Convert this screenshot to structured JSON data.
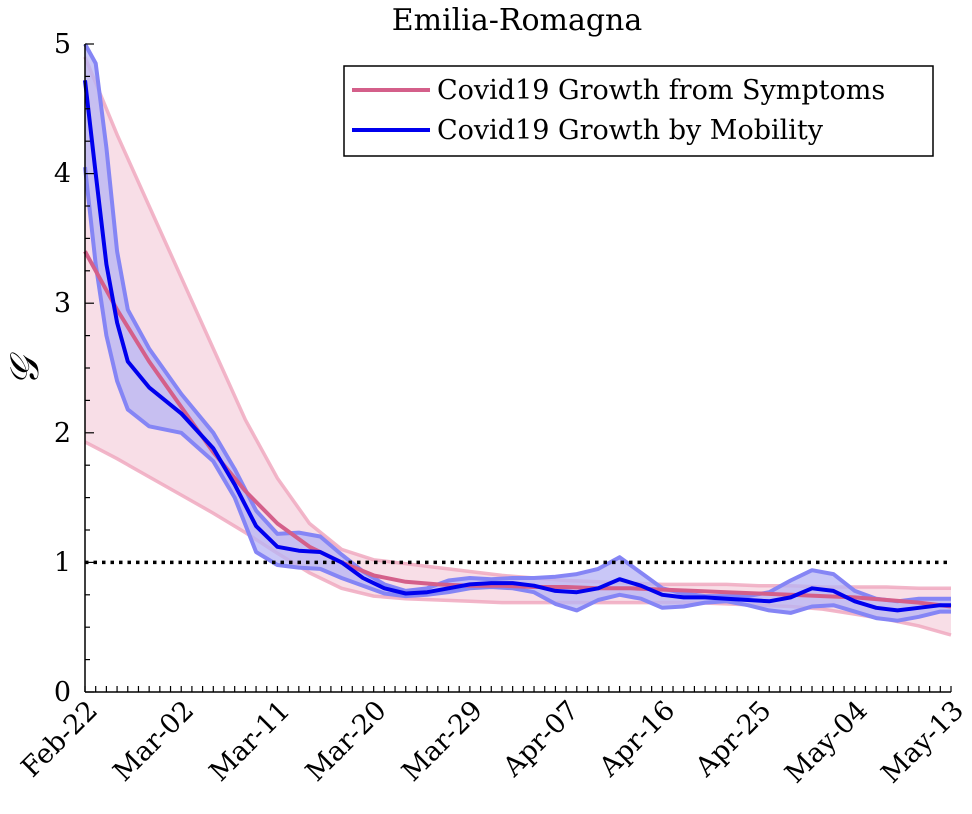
{
  "chart_data": {
    "type": "line",
    "title": "Emilia-Romagna",
    "xlabel": "",
    "ylabel": "𝒢",
    "xlim": [
      0,
      81
    ],
    "ylim": [
      0,
      5
    ],
    "grid": false,
    "legend_position": "top-right",
    "x_tick_labels": [
      "Feb-22",
      "Mar-02",
      "Mar-11",
      "Mar-20",
      "Mar-29",
      "Apr-07",
      "Apr-16",
      "Apr-25",
      "May-04",
      "May-13"
    ],
    "x_tick_positions": [
      0,
      9,
      18,
      27,
      36,
      45,
      54,
      63,
      72,
      81
    ],
    "y_tick_labels": [
      "0",
      "1",
      "2",
      "3",
      "4",
      "5"
    ],
    "y_tick_values": [
      0,
      1,
      2,
      3,
      4,
      5
    ],
    "reference_line": {
      "y": 1,
      "style": "dotted",
      "color": "#000000"
    },
    "colors": {
      "symptoms_line": "#d45f8a",
      "symptoms_band": "#f2c3d3",
      "symptoms_band_edge": "#f0a9c0",
      "mobility_line": "#0000ee",
      "mobility_band": "#b7b4f4",
      "mobility_band_edge": "#8585f5"
    },
    "series": [
      {
        "name": "Covid19 Growth from Symptoms",
        "x": [
          0,
          3,
          6,
          9,
          12,
          15,
          18,
          21,
          24,
          27,
          30,
          33,
          36,
          39,
          42,
          45,
          48,
          51,
          54,
          57,
          60,
          63,
          66,
          69,
          72,
          75,
          78,
          81
        ],
        "values": [
          3.4,
          2.95,
          2.55,
          2.2,
          1.85,
          1.55,
          1.3,
          1.12,
          1.0,
          0.9,
          0.85,
          0.83,
          0.82,
          0.82,
          0.81,
          0.81,
          0.8,
          0.8,
          0.79,
          0.78,
          0.77,
          0.76,
          0.75,
          0.74,
          0.73,
          0.71,
          0.69,
          0.66
        ],
        "lower": [
          1.93,
          1.8,
          1.66,
          1.52,
          1.38,
          1.23,
          1.07,
          0.92,
          0.8,
          0.74,
          0.72,
          0.71,
          0.7,
          0.69,
          0.69,
          0.69,
          0.69,
          0.69,
          0.69,
          0.69,
          0.68,
          0.67,
          0.66,
          0.64,
          0.6,
          0.56,
          0.51,
          0.44
        ],
        "upper": [
          4.9,
          4.3,
          3.75,
          3.2,
          2.65,
          2.1,
          1.65,
          1.3,
          1.1,
          1.02,
          0.99,
          0.96,
          0.93,
          0.9,
          0.88,
          0.86,
          0.85,
          0.84,
          0.83,
          0.83,
          0.83,
          0.82,
          0.82,
          0.81,
          0.81,
          0.81,
          0.8,
          0.8
        ]
      },
      {
        "name": "Covid19 Growth by Mobility",
        "x": [
          0,
          1,
          2,
          3,
          4,
          6,
          9,
          12,
          14,
          16,
          18,
          20,
          22,
          24,
          26,
          28,
          30,
          32,
          34,
          36,
          38,
          40,
          42,
          44,
          46,
          48,
          50,
          52,
          54,
          56,
          58,
          60,
          62,
          64,
          66,
          68,
          70,
          72,
          74,
          76,
          78,
          80,
          81
        ],
        "values": [
          4.72,
          4.0,
          3.3,
          2.85,
          2.55,
          2.35,
          2.15,
          1.88,
          1.6,
          1.28,
          1.12,
          1.09,
          1.08,
          1.0,
          0.88,
          0.8,
          0.76,
          0.77,
          0.8,
          0.83,
          0.84,
          0.84,
          0.82,
          0.78,
          0.77,
          0.8,
          0.87,
          0.82,
          0.75,
          0.73,
          0.73,
          0.72,
          0.71,
          0.7,
          0.73,
          0.8,
          0.78,
          0.7,
          0.65,
          0.63,
          0.65,
          0.67,
          0.67
        ],
        "lower": [
          4.05,
          3.3,
          2.75,
          2.4,
          2.18,
          2.05,
          2.0,
          1.78,
          1.5,
          1.08,
          0.98,
          0.96,
          0.95,
          0.88,
          0.82,
          0.76,
          0.74,
          0.75,
          0.77,
          0.8,
          0.81,
          0.8,
          0.77,
          0.68,
          0.63,
          0.71,
          0.75,
          0.72,
          0.65,
          0.66,
          0.69,
          0.7,
          0.67,
          0.63,
          0.61,
          0.66,
          0.67,
          0.62,
          0.57,
          0.55,
          0.58,
          0.62,
          0.62
        ],
        "upper": [
          5.0,
          4.85,
          4.2,
          3.4,
          2.95,
          2.65,
          2.3,
          2.0,
          1.72,
          1.4,
          1.22,
          1.23,
          1.2,
          1.06,
          0.93,
          0.83,
          0.78,
          0.8,
          0.86,
          0.88,
          0.87,
          0.88,
          0.88,
          0.89,
          0.91,
          0.95,
          1.04,
          0.92,
          0.8,
          0.76,
          0.74,
          0.74,
          0.74,
          0.77,
          0.86,
          0.94,
          0.91,
          0.78,
          0.72,
          0.7,
          0.72,
          0.72,
          0.72
        ]
      }
    ]
  }
}
